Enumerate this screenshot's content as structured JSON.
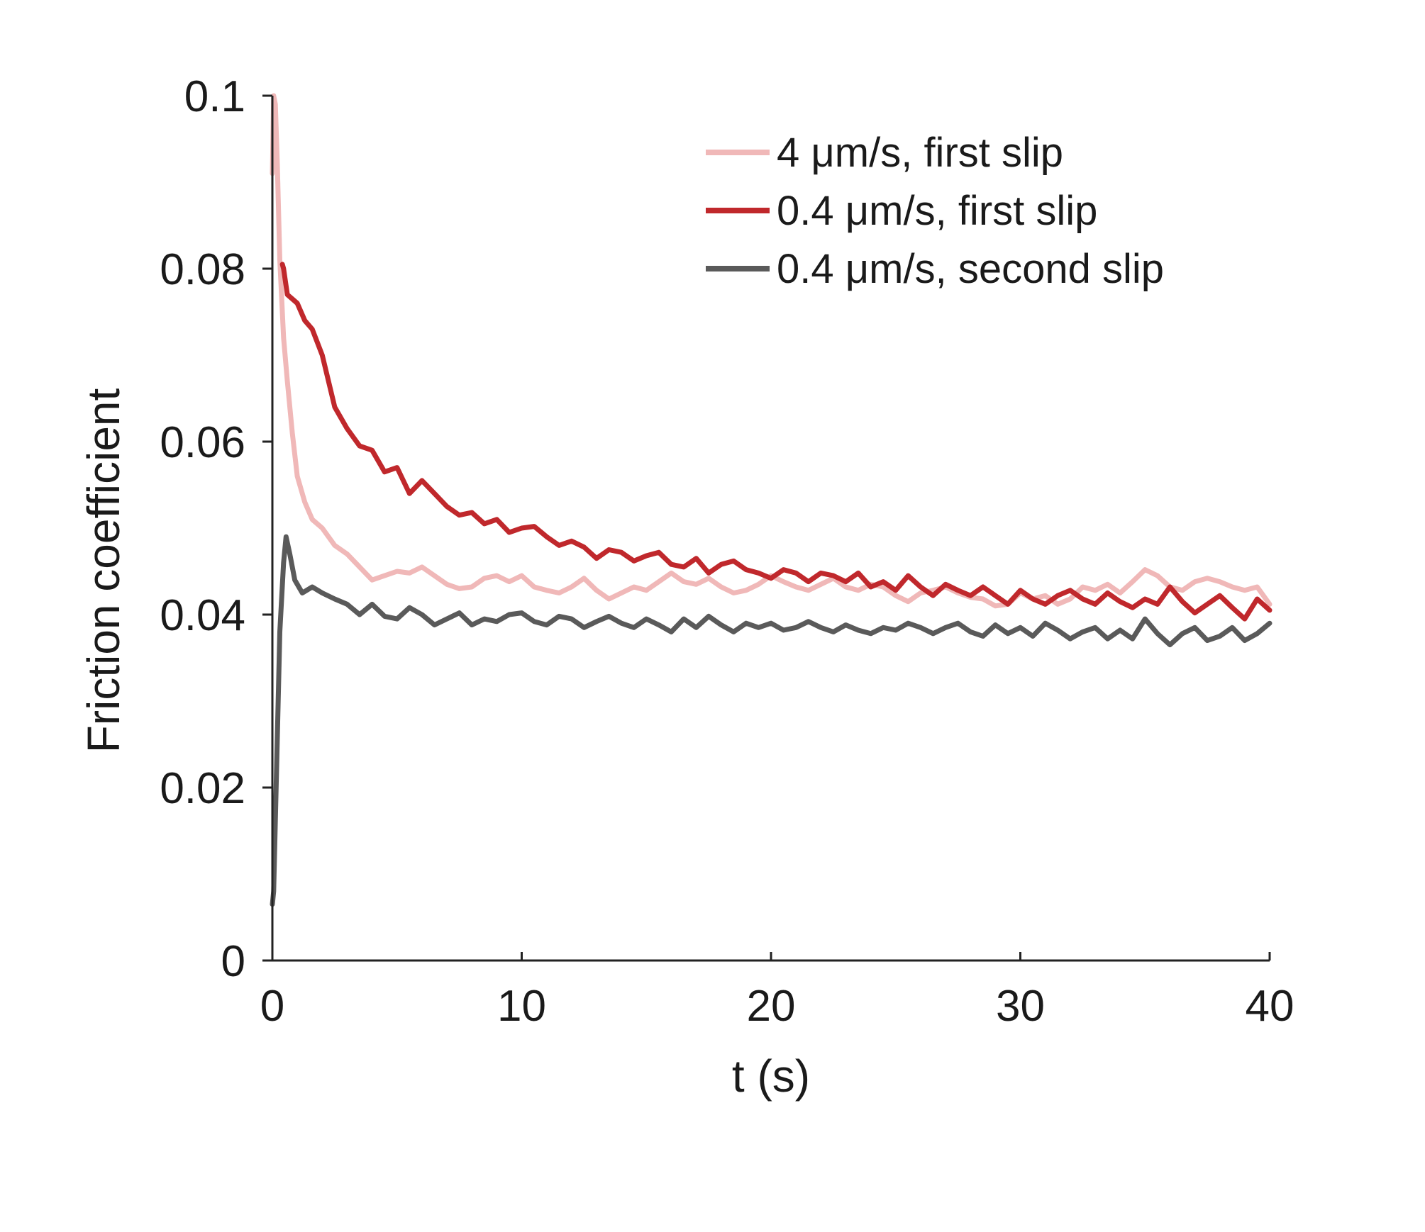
{
  "chart_data": {
    "type": "line",
    "title": "",
    "xlabel": "t (s)",
    "ylabel": "Friction coefficient",
    "xlim": [
      0,
      40
    ],
    "ylim": [
      0,
      0.1
    ],
    "grid": false,
    "legend_position": "top-right",
    "x_ticks": [
      {
        "value": 0,
        "label": "0"
      },
      {
        "value": 10,
        "label": "10"
      },
      {
        "value": 20,
        "label": "20"
      },
      {
        "value": 30,
        "label": "30"
      },
      {
        "value": 40,
        "label": "40"
      }
    ],
    "y_ticks": [
      {
        "value": 0,
        "label": "0"
      },
      {
        "value": 0.02,
        "label": "0.02"
      },
      {
        "value": 0.04,
        "label": "0.04"
      },
      {
        "value": 0.06,
        "label": "0.06"
      },
      {
        "value": 0.08,
        "label": "0.08"
      },
      {
        "value": 0.1,
        "label": "0.1"
      }
    ],
    "series": [
      {
        "name": "4 μm/s, first slip",
        "color": "#f0b8b8",
        "x": [
          0,
          0.05,
          0.12,
          0.2,
          0.3,
          0.45,
          0.6,
          0.8,
          1.0,
          1.3,
          1.6,
          2.0,
          2.5,
          3.0,
          3.5,
          4.0,
          4.5,
          5.0,
          5.5,
          6.0,
          6.5,
          7.0,
          7.5,
          8.0,
          8.5,
          9.0,
          9.5,
          10.0,
          10.5,
          11.0,
          11.5,
          12.0,
          12.5,
          13.0,
          13.5,
          14.0,
          14.5,
          15.0,
          15.5,
          16.0,
          16.5,
          17.0,
          17.5,
          18.0,
          18.5,
          19.0,
          19.5,
          20.0,
          20.5,
          21.0,
          21.5,
          22.0,
          22.5,
          23.0,
          23.5,
          24.0,
          24.5,
          25.0,
          25.5,
          26.0,
          26.5,
          27.0,
          27.5,
          28.0,
          28.5,
          29.0,
          29.5,
          30.0,
          30.5,
          31.0,
          31.5,
          32.0,
          32.5,
          33.0,
          33.5,
          34.0,
          34.5,
          35.0,
          35.5,
          36.0,
          36.5,
          37.0,
          37.5,
          38.0,
          38.5,
          39.0,
          39.5,
          40.0
        ],
        "y": [
          0.091,
          0.1,
          0.099,
          0.092,
          0.081,
          0.072,
          0.067,
          0.061,
          0.056,
          0.053,
          0.051,
          0.05,
          0.048,
          0.047,
          0.0455,
          0.044,
          0.0445,
          0.045,
          0.0448,
          0.0455,
          0.0445,
          0.0435,
          0.043,
          0.0432,
          0.0442,
          0.0445,
          0.0438,
          0.0445,
          0.0432,
          0.0428,
          0.0425,
          0.0432,
          0.0442,
          0.0428,
          0.0418,
          0.0425,
          0.0432,
          0.0428,
          0.0438,
          0.0448,
          0.0438,
          0.0435,
          0.0442,
          0.0432,
          0.0425,
          0.0428,
          0.0435,
          0.0445,
          0.0438,
          0.0432,
          0.0428,
          0.0435,
          0.0442,
          0.0432,
          0.0428,
          0.0435,
          0.0432,
          0.0422,
          0.0415,
          0.0425,
          0.0428,
          0.0432,
          0.0425,
          0.042,
          0.0418,
          0.041,
          0.0412,
          0.0425,
          0.0418,
          0.0422,
          0.0412,
          0.0418,
          0.0432,
          0.0428,
          0.0435,
          0.0425,
          0.0438,
          0.0452,
          0.0445,
          0.0432,
          0.0428,
          0.0438,
          0.0442,
          0.0438,
          0.0432,
          0.0428,
          0.0432,
          0.0412
        ]
      },
      {
        "name": "0.4 μm/s, first slip",
        "color": "#c0282c",
        "x": [
          0.4,
          0.45,
          0.6,
          0.8,
          1.0,
          1.3,
          1.6,
          2.0,
          2.5,
          3.0,
          3.5,
          4.0,
          4.5,
          5.0,
          5.5,
          6.0,
          6.5,
          7.0,
          7.5,
          8.0,
          8.5,
          9.0,
          9.5,
          10.0,
          10.5,
          11.0,
          11.5,
          12.0,
          12.5,
          13.0,
          13.5,
          14.0,
          14.5,
          15.0,
          15.5,
          16.0,
          16.5,
          17.0,
          17.5,
          18.0,
          18.5,
          19.0,
          19.5,
          20.0,
          20.5,
          21.0,
          21.5,
          22.0,
          22.5,
          23.0,
          23.5,
          24.0,
          24.5,
          25.0,
          25.5,
          26.0,
          26.5,
          27.0,
          27.5,
          28.0,
          28.5,
          29.0,
          29.5,
          30.0,
          30.5,
          31.0,
          31.5,
          32.0,
          32.5,
          33.0,
          33.5,
          34.0,
          34.5,
          35.0,
          35.5,
          36.0,
          36.5,
          37.0,
          37.5,
          38.0,
          38.5,
          39.0,
          39.5,
          40.0
        ],
        "y": [
          0.0805,
          0.08,
          0.077,
          0.0765,
          0.076,
          0.074,
          0.073,
          0.07,
          0.064,
          0.0615,
          0.0595,
          0.059,
          0.0565,
          0.057,
          0.054,
          0.0555,
          0.054,
          0.0525,
          0.0515,
          0.0518,
          0.0505,
          0.051,
          0.0495,
          0.05,
          0.0502,
          0.049,
          0.048,
          0.0485,
          0.0478,
          0.0465,
          0.0475,
          0.0472,
          0.0462,
          0.0468,
          0.0472,
          0.0458,
          0.0455,
          0.0465,
          0.0448,
          0.0458,
          0.0462,
          0.0452,
          0.0448,
          0.0442,
          0.0452,
          0.0448,
          0.0438,
          0.0448,
          0.0445,
          0.0438,
          0.0448,
          0.0432,
          0.0438,
          0.0428,
          0.0445,
          0.0432,
          0.0422,
          0.0435,
          0.0428,
          0.0422,
          0.0432,
          0.0422,
          0.0412,
          0.0428,
          0.0418,
          0.0412,
          0.0422,
          0.0428,
          0.0418,
          0.0412,
          0.0425,
          0.0415,
          0.0408,
          0.0418,
          0.0412,
          0.0432,
          0.0415,
          0.0402,
          0.0412,
          0.0422,
          0.0408,
          0.0395,
          0.0418,
          0.0405
        ]
      },
      {
        "name": "0.4 μm/s, second slip",
        "color": "#5a5a5a",
        "x": [
          0,
          0.05,
          0.15,
          0.3,
          0.45,
          0.55,
          0.7,
          0.9,
          1.2,
          1.6,
          2.0,
          2.5,
          3.0,
          3.5,
          4.0,
          4.5,
          5.0,
          5.5,
          6.0,
          6.5,
          7.0,
          7.5,
          8.0,
          8.5,
          9.0,
          9.5,
          10.0,
          10.5,
          11.0,
          11.5,
          12.0,
          12.5,
          13.0,
          13.5,
          14.0,
          14.5,
          15.0,
          15.5,
          16.0,
          16.5,
          17.0,
          17.5,
          18.0,
          18.5,
          19.0,
          19.5,
          20.0,
          20.5,
          21.0,
          21.5,
          22.0,
          22.5,
          23.0,
          23.5,
          24.0,
          24.5,
          25.0,
          25.5,
          26.0,
          26.5,
          27.0,
          27.5,
          28.0,
          28.5,
          29.0,
          29.5,
          30.0,
          30.5,
          31.0,
          31.5,
          32.0,
          32.5,
          33.0,
          33.5,
          34.0,
          34.5,
          35.0,
          35.5,
          36.0,
          36.5,
          37.0,
          37.5,
          38.0,
          38.5,
          39.0,
          39.5,
          40.0
        ],
        "y": [
          0.0065,
          0.008,
          0.02,
          0.038,
          0.046,
          0.049,
          0.047,
          0.044,
          0.0425,
          0.0432,
          0.0425,
          0.0418,
          0.0412,
          0.04,
          0.0412,
          0.0398,
          0.0395,
          0.0408,
          0.04,
          0.0388,
          0.0395,
          0.0402,
          0.0388,
          0.0395,
          0.0392,
          0.04,
          0.0402,
          0.0392,
          0.0388,
          0.0398,
          0.0395,
          0.0385,
          0.0392,
          0.0398,
          0.039,
          0.0385,
          0.0395,
          0.0388,
          0.038,
          0.0395,
          0.0385,
          0.0398,
          0.0388,
          0.038,
          0.039,
          0.0385,
          0.039,
          0.0382,
          0.0385,
          0.0392,
          0.0385,
          0.038,
          0.0388,
          0.0382,
          0.0378,
          0.0385,
          0.0382,
          0.039,
          0.0385,
          0.0378,
          0.0385,
          0.039,
          0.038,
          0.0375,
          0.0388,
          0.0378,
          0.0385,
          0.0375,
          0.039,
          0.0382,
          0.0372,
          0.038,
          0.0385,
          0.0372,
          0.0382,
          0.0372,
          0.0395,
          0.0378,
          0.0365,
          0.0378,
          0.0385,
          0.037,
          0.0375,
          0.0385,
          0.037,
          0.0378,
          0.039
        ]
      }
    ]
  }
}
